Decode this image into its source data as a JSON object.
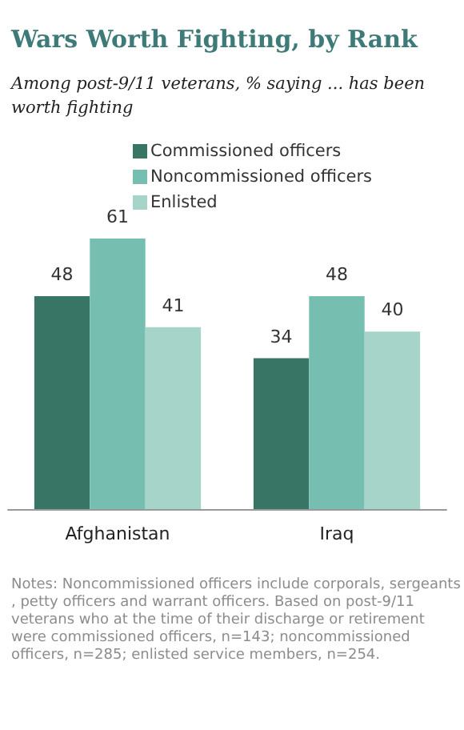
{
  "chart_data": {
    "type": "bar",
    "title": "Wars Worth Fighting, by Rank",
    "subtitle": "Among post-9/11 veterans, % saying ... has been worth fighting",
    "categories": [
      "Afghanistan",
      "Iraq"
    ],
    "series": [
      {
        "name": "Commissioned officers",
        "color": "#387565",
        "values": [
          48,
          34
        ]
      },
      {
        "name": "Noncommissioned officers",
        "color": "#76bfb0",
        "values": [
          61,
          48
        ]
      },
      {
        "name": "Enlisted",
        "color": "#a6d4c9",
        "values": [
          41,
          40
        ]
      }
    ],
    "data_labels": true,
    "legend": "top",
    "annotations": [
      "Notes: Noncommissioned officers include corporals, sergeants, petty officers and warrant officers. Based on post-9/11 veterans who at the time of their discharge or retirement were commissioned officers, n=143; noncommissioned officers, n=285; enlisted service members, n=254."
    ]
  }
}
